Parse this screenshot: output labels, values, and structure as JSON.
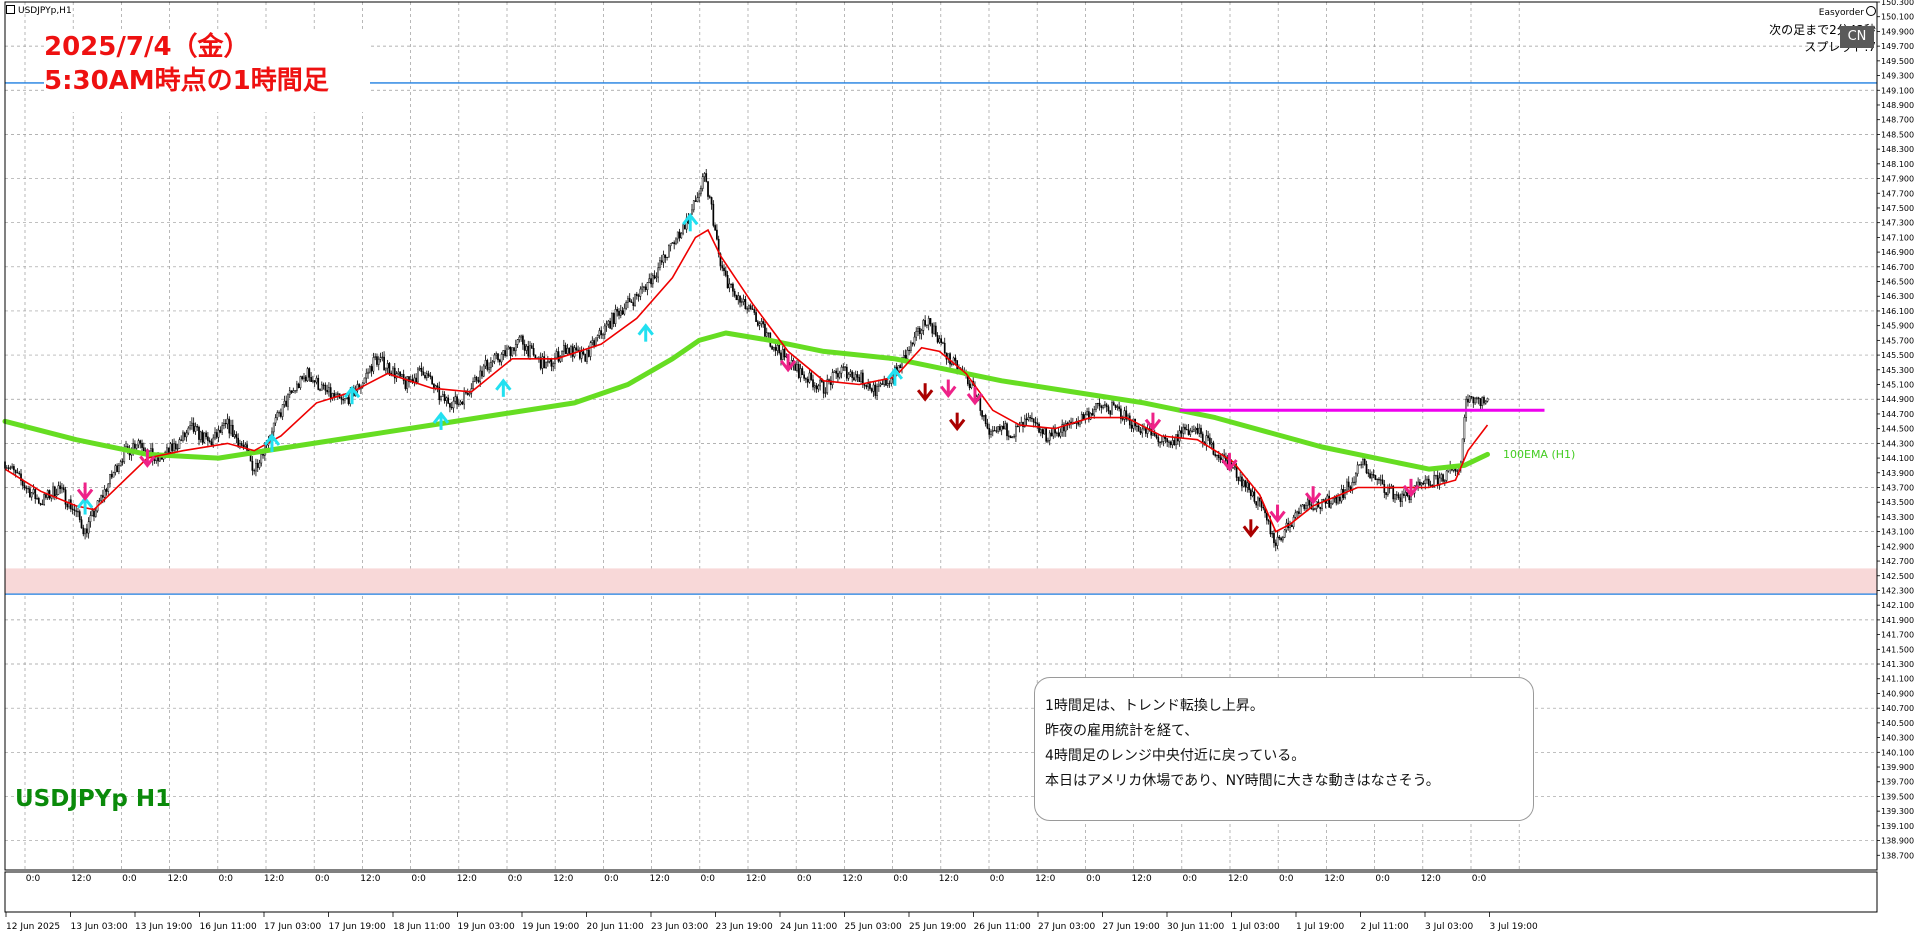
{
  "window": {
    "symbol_title": "USDJPYp,H1"
  },
  "top_right": {
    "easyorder_label": "Easyorder",
    "next_bar_label": "次の足まで2分43秒",
    "spread_label": "スプレッド:7",
    "cn_button": "CN"
  },
  "title": {
    "line1": "2025/7/4（金）",
    "line2": "5:30AM時点の1時間足"
  },
  "symbol_label": "USDJPYp H1",
  "comment": {
    "lines": [
      "1時間足は、トレンド転換し上昇。",
      "昨夜の雇用統計を経て、",
      "4時間足のレンジ中央付近に戻っている。",
      "本日はアメリカ休場であり、NY時間に大きな動きはなさそう。"
    ]
  },
  "ema_label": "100EMA (H1)",
  "colors": {
    "candle": "#000000",
    "fast_ma": "#ee0000",
    "ema100": "#66dd22",
    "range_line": "#ee00ee",
    "hline": "#1f7fe0",
    "zone": "#f8d8d8",
    "arrow_up": "#22e0f0",
    "arrow_down_pink": "#ee2288",
    "arrow_down_dark": "#aa0000"
  },
  "chart_data": {
    "type": "candlestick",
    "symbol": "USDJPYp",
    "timeframe": "H1",
    "ylim": [
      138.5,
      150.3
    ],
    "y_ticks": [
      150.3,
      150.1,
      149.9,
      149.7,
      149.5,
      149.3,
      149.1,
      148.9,
      148.7,
      148.5,
      148.3,
      148.1,
      147.9,
      147.7,
      147.5,
      147.3,
      147.1,
      146.9,
      146.7,
      146.5,
      146.3,
      146.1,
      145.9,
      145.7,
      145.5,
      145.3,
      145.1,
      144.9,
      144.7,
      144.5,
      144.3,
      144.1,
      143.9,
      143.7,
      143.5,
      143.3,
      143.1,
      142.9,
      142.7,
      142.5,
      142.3,
      142.1,
      141.9,
      141.7,
      141.5,
      141.3,
      141.1,
      140.9,
      140.7,
      140.5,
      140.3,
      140.1,
      139.9,
      139.7,
      139.5,
      139.3,
      139.1,
      138.9,
      138.7
    ],
    "x_time_labels": [
      "12 Jun 2025",
      "13 Jun 03:00",
      "13 Jun 19:00",
      "16 Jun 11:00",
      "17 Jun 03:00",
      "17 Jun 19:00",
      "18 Jun 11:00",
      "19 Jun 03:00",
      "19 Jun 19:00",
      "20 Jun 11:00",
      "23 Jun 03:00",
      "23 Jun 19:00",
      "24 Jun 11:00",
      "25 Jun 03:00",
      "25 Jun 19:00",
      "26 Jun 11:00",
      "27 Jun 03:00",
      "27 Jun 19:00",
      "30 Jun 11:00",
      "1 Jul 03:00",
      "1 Jul 19:00",
      "2 Jul 11:00",
      "3 Jul 03:00",
      "3 Jul 19:00"
    ],
    "x_hour_labels": [
      "0:0",
      "12:0",
      "0:0",
      "12:0",
      "0:0",
      "12:0",
      "0:0",
      "12:0",
      "0:0",
      "12:0",
      "0:0",
      "12:0",
      "0:0",
      "12:0",
      "0:0",
      "12:0",
      "0:0",
      "12:0",
      "0:0",
      "12:0",
      "0:0",
      "12:0",
      "0:0",
      "12:0",
      "0:0",
      "12:0",
      "0:0",
      "12:0",
      "0:0",
      "12:0",
      "0:0"
    ],
    "close_path": [
      [
        0,
        144.05
      ],
      [
        10,
        143.75
      ],
      [
        20,
        143.5
      ],
      [
        30,
        143.7
      ],
      [
        40,
        143.35
      ],
      [
        45,
        143.1
      ],
      [
        55,
        143.6
      ],
      [
        65,
        144.1
      ],
      [
        75,
        144.35
      ],
      [
        85,
        144.05
      ],
      [
        95,
        144.25
      ],
      [
        105,
        144.5
      ],
      [
        115,
        144.3
      ],
      [
        125,
        144.55
      ],
      [
        135,
        144.2
      ],
      [
        140,
        143.95
      ],
      [
        150,
        144.5
      ],
      [
        160,
        144.95
      ],
      [
        170,
        145.25
      ],
      [
        180,
        145.0
      ],
      [
        190,
        144.85
      ],
      [
        200,
        145.1
      ],
      [
        208,
        145.45
      ],
      [
        215,
        145.35
      ],
      [
        225,
        145.1
      ],
      [
        235,
        145.3
      ],
      [
        245,
        144.9
      ],
      [
        255,
        144.85
      ],
      [
        262,
        145.1
      ],
      [
        270,
        145.35
      ],
      [
        280,
        145.5
      ],
      [
        290,
        145.7
      ],
      [
        298,
        145.45
      ],
      [
        305,
        145.35
      ],
      [
        315,
        145.6
      ],
      [
        325,
        145.45
      ],
      [
        335,
        145.8
      ],
      [
        345,
        146.1
      ],
      [
        355,
        146.3
      ],
      [
        365,
        146.6
      ],
      [
        375,
        147.0
      ],
      [
        385,
        147.4
      ],
      [
        393,
        147.9
      ],
      [
        397,
        147.5
      ],
      [
        402,
        146.7
      ],
      [
        410,
        146.3
      ],
      [
        420,
        146.05
      ],
      [
        430,
        145.7
      ],
      [
        440,
        145.4
      ],
      [
        450,
        145.2
      ],
      [
        460,
        145.05
      ],
      [
        470,
        145.3
      ],
      [
        480,
        145.2
      ],
      [
        490,
        145.0
      ],
      [
        500,
        145.25
      ],
      [
        510,
        145.65
      ],
      [
        518,
        146.0
      ],
      [
        523,
        145.8
      ],
      [
        530,
        145.45
      ],
      [
        540,
        145.2
      ],
      [
        547,
        144.9
      ],
      [
        553,
        144.35
      ],
      [
        560,
        144.5
      ],
      [
        567,
        144.45
      ],
      [
        575,
        144.6
      ],
      [
        585,
        144.4
      ],
      [
        595,
        144.5
      ],
      [
        605,
        144.65
      ],
      [
        615,
        144.8
      ],
      [
        625,
        144.75
      ],
      [
        635,
        144.55
      ],
      [
        645,
        144.4
      ],
      [
        655,
        144.25
      ],
      [
        662,
        144.5
      ],
      [
        670,
        144.45
      ],
      [
        680,
        144.2
      ],
      [
        690,
        143.95
      ],
      [
        700,
        143.65
      ],
      [
        708,
        143.3
      ],
      [
        714,
        142.95
      ],
      [
        720,
        143.15
      ],
      [
        730,
        143.5
      ],
      [
        740,
        143.45
      ],
      [
        750,
        143.6
      ],
      [
        757,
        143.75
      ],
      [
        762,
        144.05
      ],
      [
        768,
        143.85
      ],
      [
        775,
        143.7
      ],
      [
        785,
        143.55
      ],
      [
        795,
        143.7
      ],
      [
        805,
        143.8
      ],
      [
        815,
        143.95
      ],
      [
        818,
        144.05
      ],
      [
        821,
        144.95
      ],
      [
        828,
        144.9
      ],
      [
        833,
        144.85
      ]
    ],
    "fast_ma_path": [
      [
        0,
        143.95
      ],
      [
        20,
        143.65
      ],
      [
        40,
        143.45
      ],
      [
        50,
        143.4
      ],
      [
        65,
        143.75
      ],
      [
        80,
        144.1
      ],
      [
        100,
        144.2
      ],
      [
        125,
        144.3
      ],
      [
        140,
        144.2
      ],
      [
        155,
        144.4
      ],
      [
        175,
        144.85
      ],
      [
        195,
        145.0
      ],
      [
        215,
        145.25
      ],
      [
        240,
        145.05
      ],
      [
        262,
        145.0
      ],
      [
        285,
        145.45
      ],
      [
        310,
        145.45
      ],
      [
        335,
        145.65
      ],
      [
        355,
        146.0
      ],
      [
        375,
        146.55
      ],
      [
        388,
        147.1
      ],
      [
        395,
        147.2
      ],
      [
        402,
        146.85
      ],
      [
        420,
        146.2
      ],
      [
        440,
        145.55
      ],
      [
        460,
        145.15
      ],
      [
        480,
        145.1
      ],
      [
        500,
        145.2
      ],
      [
        515,
        145.6
      ],
      [
        525,
        145.55
      ],
      [
        540,
        145.25
      ],
      [
        555,
        144.75
      ],
      [
        570,
        144.55
      ],
      [
        590,
        144.5
      ],
      [
        610,
        144.65
      ],
      [
        630,
        144.65
      ],
      [
        650,
        144.4
      ],
      [
        670,
        144.35
      ],
      [
        690,
        144.05
      ],
      [
        705,
        143.6
      ],
      [
        714,
        143.1
      ],
      [
        722,
        143.2
      ],
      [
        735,
        143.45
      ],
      [
        760,
        143.7
      ],
      [
        780,
        143.7
      ],
      [
        800,
        143.7
      ],
      [
        815,
        143.8
      ],
      [
        822,
        144.2
      ],
      [
        833,
        144.55
      ]
    ],
    "ema100_path": [
      [
        0,
        144.6
      ],
      [
        40,
        144.35
      ],
      [
        80,
        144.15
      ],
      [
        120,
        144.1
      ],
      [
        160,
        144.25
      ],
      [
        200,
        144.4
      ],
      [
        240,
        144.55
      ],
      [
        280,
        144.7
      ],
      [
        320,
        144.85
      ],
      [
        350,
        145.1
      ],
      [
        375,
        145.45
      ],
      [
        390,
        145.7
      ],
      [
        405,
        145.8
      ],
      [
        430,
        145.7
      ],
      [
        460,
        145.55
      ],
      [
        500,
        145.45
      ],
      [
        530,
        145.3
      ],
      [
        560,
        145.15
      ],
      [
        600,
        145.0
      ],
      [
        640,
        144.85
      ],
      [
        680,
        144.65
      ],
      [
        710,
        144.45
      ],
      [
        740,
        144.25
      ],
      [
        770,
        144.1
      ],
      [
        800,
        143.95
      ],
      [
        820,
        144.0
      ],
      [
        833,
        144.15
      ]
    ],
    "range_line": {
      "price": 144.75,
      "from_bar": 660,
      "to_bar": 865
    },
    "horizontal_lines": [
      149.2,
      142.25
    ],
    "zone": [
      142.25,
      142.6
    ],
    "arrows_up": [
      [
        45,
        143.55
      ],
      [
        150,
        144.4
      ],
      [
        195,
        145.05
      ],
      [
        245,
        144.7
      ],
      [
        280,
        145.15
      ],
      [
        385,
        147.4
      ],
      [
        360,
        145.9
      ],
      [
        500,
        145.3
      ]
    ],
    "arrows_down_pink": [
      [
        45,
        143.55
      ],
      [
        80,
        144.0
      ],
      [
        440,
        145.3
      ],
      [
        530,
        144.95
      ],
      [
        545,
        144.85
      ],
      [
        645,
        144.5
      ],
      [
        688,
        143.95
      ],
      [
        715,
        143.25
      ],
      [
        735,
        143.5
      ],
      [
        790,
        143.6
      ]
    ],
    "arrows_down_dark": [
      [
        517,
        144.9
      ],
      [
        535,
        144.5
      ],
      [
        700,
        143.05
      ]
    ],
    "bar_count": 840
  }
}
